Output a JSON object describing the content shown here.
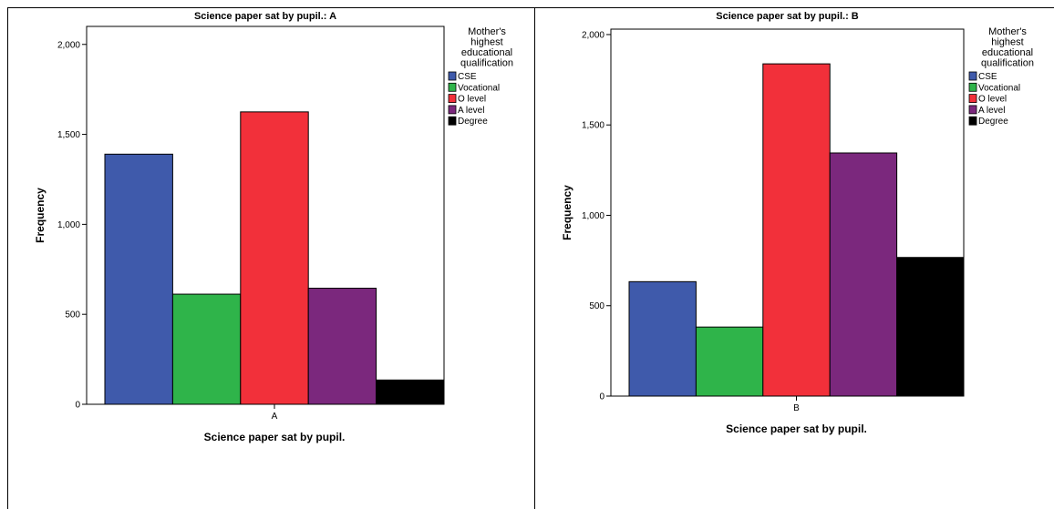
{
  "chart_data": [
    {
      "type": "bar",
      "title": "Science paper sat by pupil.: A",
      "xlabel": "Science paper sat by pupil.",
      "ylabel": "Frequency",
      "categories": [
        "A"
      ],
      "ylim": [
        0,
        2100
      ],
      "yticks": [
        "0",
        "500",
        "1,000",
        "1,500",
        "2,000"
      ],
      "ytick_values": [
        0,
        500,
        1000,
        1500,
        2000
      ],
      "legend_title": [
        "Mother's",
        "highest",
        "educational",
        "qualification"
      ],
      "legend_position": "top-right",
      "series": [
        {
          "name": "CSE",
          "color": "#3f5aab",
          "values": [
            1390
          ]
        },
        {
          "name": "Vocational",
          "color": "#2fb44a",
          "values": [
            612
          ]
        },
        {
          "name": "O level",
          "color": "#f2303a",
          "values": [
            1625
          ]
        },
        {
          "name": "A level",
          "color": "#7b287d",
          "values": [
            645
          ]
        },
        {
          "name": "Degree",
          "color": "#000000",
          "values": [
            135
          ]
        }
      ]
    },
    {
      "type": "bar",
      "title": "Science paper sat by pupil.: B",
      "xlabel": "Science paper sat by pupil.",
      "ylabel": "Frequency",
      "categories": [
        "B"
      ],
      "ylim": [
        0,
        2030
      ],
      "yticks": [
        "0",
        "500",
        "1,000",
        "1,500",
        "2,000"
      ],
      "ytick_values": [
        0,
        500,
        1000,
        1500,
        2000
      ],
      "legend_title": [
        "Mother's",
        "highest",
        "educational",
        "qualification"
      ],
      "legend_position": "top-right",
      "series": [
        {
          "name": "CSE",
          "color": "#3f5aab",
          "values": [
            633
          ]
        },
        {
          "name": "Vocational",
          "color": "#2fb44a",
          "values": [
            382
          ]
        },
        {
          "name": "O level",
          "color": "#f2303a",
          "values": [
            1838
          ]
        },
        {
          "name": "A level",
          "color": "#7b287d",
          "values": [
            1345
          ]
        },
        {
          "name": "Degree",
          "color": "#000000",
          "values": [
            767
          ]
        }
      ]
    }
  ]
}
